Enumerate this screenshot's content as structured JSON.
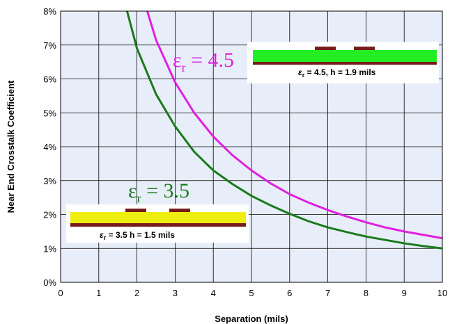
{
  "chart_data": {
    "type": "line",
    "xlabel": "Separation (mils)",
    "ylabel": "Near End Crosstalk Coefficient",
    "xlim": [
      0,
      10
    ],
    "ylim": [
      0,
      8
    ],
    "x_ticks": [
      "0",
      "1",
      "2",
      "3",
      "4",
      "5",
      "6",
      "7",
      "8",
      "9",
      "10"
    ],
    "y_ticks": [
      "0%",
      "1%",
      "2%",
      "3%",
      "4%",
      "5%",
      "6%",
      "7%",
      "8%"
    ],
    "grid": true,
    "background": "#e8eef9",
    "series": [
      {
        "name": "εr = 4.5",
        "color": "#e020e0",
        "x": [
          2.0,
          2.5,
          3.0,
          3.5,
          4.0,
          4.5,
          5.0,
          5.5,
          6.0,
          6.5,
          7.0,
          7.5,
          8.0,
          8.5,
          9.0,
          9.5,
          10.0
        ],
        "y": [
          9.0,
          7.15,
          5.9,
          5.0,
          4.3,
          3.75,
          3.3,
          2.92,
          2.6,
          2.35,
          2.13,
          1.94,
          1.77,
          1.62,
          1.5,
          1.4,
          1.3
        ]
      },
      {
        "name": "εr = 3.5",
        "color": "#1a7a1a",
        "x": [
          1.6,
          2.0,
          2.5,
          3.0,
          3.5,
          4.0,
          4.5,
          5.0,
          5.5,
          6.0,
          6.5,
          7.0,
          7.5,
          8.0,
          8.5,
          9.0,
          9.5,
          10.0
        ],
        "y": [
          8.6,
          6.9,
          5.55,
          4.6,
          3.85,
          3.3,
          2.9,
          2.55,
          2.27,
          2.02,
          1.8,
          1.62,
          1.48,
          1.35,
          1.25,
          1.15,
          1.07,
          1.0
        ]
      }
    ],
    "annotations": [
      {
        "id": "er45",
        "symbol": "ε",
        "subscript": "r",
        "text": " = 4.5",
        "color": "#e020e0"
      },
      {
        "id": "er35",
        "symbol": "ε",
        "subscript": "r",
        "text": " = 3.5",
        "color": "#1a7a1a"
      }
    ],
    "insets": [
      {
        "id": "inset-45",
        "dielectric_color": "#22ee22",
        "plane_color": "#7a1a1a",
        "trace_color": "#7a1a1a",
        "caption_symbol": "ε",
        "caption_sub": "r",
        "caption_text": " = 4.5, h = 1.9 mils"
      },
      {
        "id": "inset-35",
        "dielectric_color": "#eeee10",
        "plane_color": "#7a1a1a",
        "trace_color": "#7a1a1a",
        "caption_symbol": "ε",
        "caption_sub": "r",
        "caption_text": " = 3.5 h = 1.5 mils"
      }
    ]
  }
}
